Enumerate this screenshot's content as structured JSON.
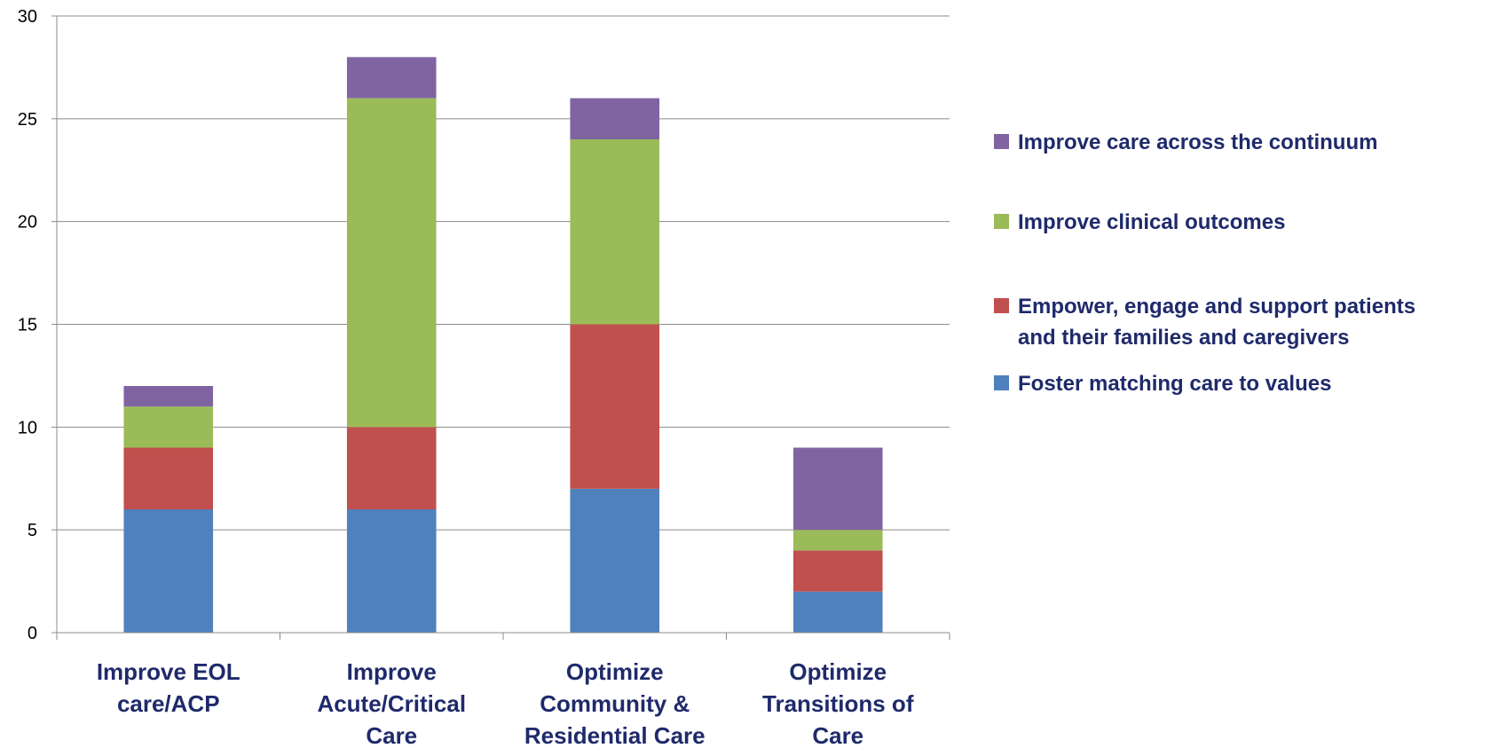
{
  "chart_data": {
    "type": "bar",
    "stacked": true,
    "categories": [
      [
        "Improve EOL",
        "care/ACP"
      ],
      [
        "Improve",
        "Acute/Critical",
        "Care"
      ],
      [
        "Optimize",
        "Community &",
        "Residential Care"
      ],
      [
        "Optimize",
        "Transitions of",
        "Care"
      ]
    ],
    "series": [
      {
        "name": "Foster matching care to values",
        "color": "#4f81bd",
        "values": [
          6,
          6,
          7,
          2
        ]
      },
      {
        "name": "Empower, engage and support patients and their families and caregivers",
        "color": "#c0504d",
        "values": [
          3,
          4,
          8,
          2
        ]
      },
      {
        "name": "Improve clinical outcomes",
        "color": "#9bbb59",
        "values": [
          2,
          16,
          9,
          1
        ]
      },
      {
        "name": "Improve care across the continuum",
        "color": "#8064a2",
        "values": [
          1,
          2,
          2,
          4
        ]
      }
    ],
    "legend": [
      {
        "label_lines": [
          "Improve care across the continuum"
        ],
        "color": "#8064a2"
      },
      {
        "label_lines": [
          "Improve clinical outcomes"
        ],
        "color": "#9bbb59"
      },
      {
        "label_lines": [
          "Empower, engage and support patients",
          "and their families and caregivers"
        ],
        "color": "#c0504d"
      },
      {
        "label_lines": [
          "Foster matching care to values"
        ],
        "color": "#4f81bd"
      }
    ],
    "yticks": [
      0,
      5,
      10,
      15,
      20,
      25,
      30
    ],
    "ylim": [
      0,
      30
    ],
    "grid": true,
    "legend_position": "right",
    "title": "",
    "xlabel": "",
    "ylabel": ""
  }
}
